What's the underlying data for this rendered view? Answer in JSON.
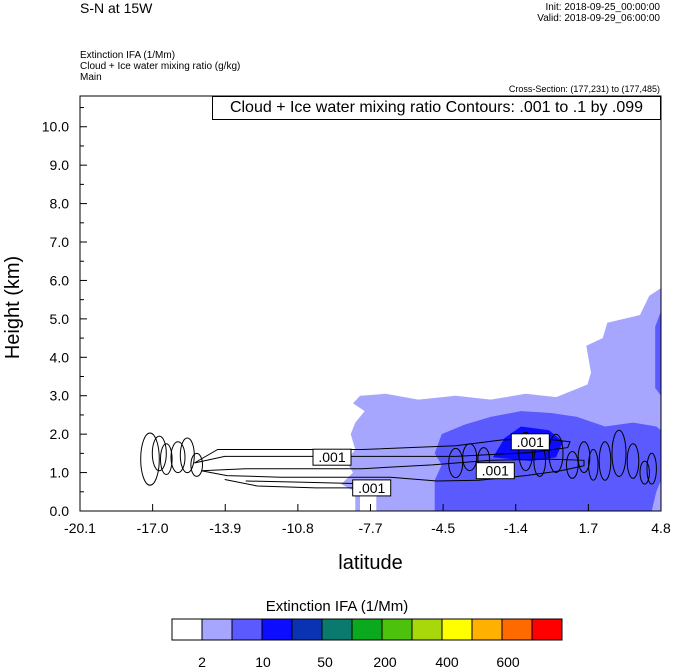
{
  "header": {
    "title": "S-N at 15W",
    "init": "Init: 2018-09-25_00:00:00",
    "valid": "Valid: 2018-09-29_06:00:00",
    "field1": "Extinction IFA   (1/Mm)",
    "field2": "Cloud + Ice water mixing ratio   (g/kg)",
    "field3": "Main",
    "cross_section": "Cross-Section: (177,231) to (177,485)"
  },
  "colors": {
    "levels": [
      "#ffffff",
      "#a6a6ff",
      "#5a5aff",
      "#0c0cff",
      "#0a33b3",
      "#0a7a6e",
      "#0aa91e",
      "#4dc20c",
      "#a8d80a",
      "#ffff00",
      "#ffb000",
      "#ff6a00",
      "#ff0000"
    ]
  },
  "chart_data": {
    "type": "contour",
    "xlabel": "latitude",
    "ylabel": "Height (km)",
    "x_ticks": [
      "-20.1",
      "-17.0",
      "-13.9",
      "-10.8",
      "-7.7",
      "-4.5",
      "-1.4",
      "1.7",
      "4.8"
    ],
    "xlim": [
      -20.1,
      4.8
    ],
    "y_ticks": [
      "0.0",
      "1.0",
      "2.0",
      "3.0",
      "4.0",
      "5.0",
      "6.0",
      "7.0",
      "8.0",
      "9.0",
      "10.0"
    ],
    "ylim": [
      0,
      10.8
    ],
    "contour_info": "Cloud + Ice water mixing ratio Contours: .001 to .1 by .099",
    "contour_labels": [
      {
        "text": ".001",
        "lat": -9.3,
        "h": 1.4
      },
      {
        "text": ".001",
        "lat": -7.6,
        "h": 0.6
      },
      {
        "text": ".001",
        "lat": -2.3,
        "h": 1.05
      },
      {
        "text": ".001",
        "lat": -0.8,
        "h": 1.8
      }
    ],
    "colorbar": {
      "title": "Extinction IFA  (1/Mm)",
      "labels": [
        "2",
        "10",
        "50",
        "200",
        "400",
        "600"
      ]
    },
    "shaded_regions": [
      {
        "level": 1,
        "h_range": [
          0,
          3.0
        ],
        "lat_range": [
          -8.2,
          4.8
        ]
      },
      {
        "level": 1,
        "h_range": [
          3.0,
          5.8
        ],
        "lat_range": [
          1.7,
          4.8
        ]
      },
      {
        "level": 2,
        "h_range": [
          0,
          2.6
        ],
        "lat_range": [
          -4.8,
          4.6
        ]
      },
      {
        "level": 3,
        "h_range": [
          1.3,
          2.2
        ],
        "lat_range": [
          -2.0,
          0.5
        ]
      }
    ]
  }
}
